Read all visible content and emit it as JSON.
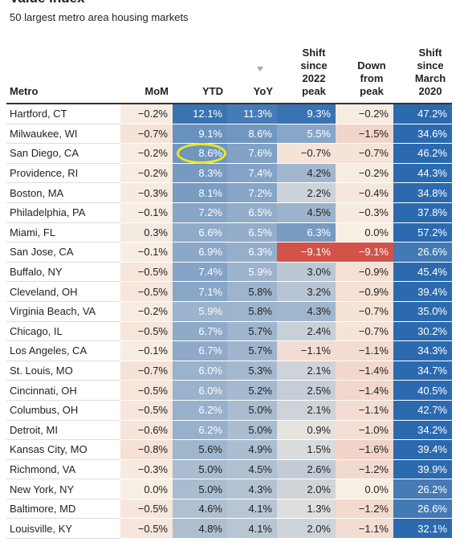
{
  "header": {
    "title": "Value index",
    "subtitle": "50 largest metro area housing markets"
  },
  "table": {
    "columns": [
      "Metro",
      "MoM",
      "YTD",
      "YoY",
      "Shift since 2022 peak",
      "Down from peak",
      "Shift since March 2020"
    ],
    "rows": [
      [
        "Hartford, CT",
        "−0.2%",
        "12.1%",
        "11.3%",
        "9.3%",
        "−0.2%",
        "47.2%"
      ],
      [
        "Milwaukee, WI",
        "−0.7%",
        "9.1%",
        "8.6%",
        "5.5%",
        "−1.5%",
        "34.6%"
      ],
      [
        "San Diego, CA",
        "−0.2%",
        "8.6%",
        "7.6%",
        "−0.7%",
        "−0.7%",
        "46.2%"
      ],
      [
        "Providence, RI",
        "−0.2%",
        "8.3%",
        "7.4%",
        "4.2%",
        "−0.2%",
        "44.3%"
      ],
      [
        "Boston, MA",
        "−0.3%",
        "8.1%",
        "7.2%",
        "2.2%",
        "−0.4%",
        "34.8%"
      ],
      [
        "Philadelphia, PA",
        "−0.1%",
        "7.2%",
        "6.5%",
        "4.5%",
        "−0.3%",
        "37.8%"
      ],
      [
        "Miami, FL",
        "0.3%",
        "6.6%",
        "6.5%",
        "6.3%",
        "0.0%",
        "57.2%"
      ],
      [
        "San Jose, CA",
        "−0.1%",
        "6.9%",
        "6.3%",
        "−9.1%",
        "−9.1%",
        "26.6%"
      ],
      [
        "Buffalo, NY",
        "−0.5%",
        "7.4%",
        "5.9%",
        "3.0%",
        "−0.9%",
        "45.4%"
      ],
      [
        "Cleveland, OH",
        "−0.5%",
        "7.1%",
        "5.8%",
        "3.2%",
        "−0.9%",
        "39.4%"
      ],
      [
        "Virginia Beach, VA",
        "−0.2%",
        "5.9%",
        "5.8%",
        "4.3%",
        "−0.7%",
        "35.0%"
      ],
      [
        "Chicago, IL",
        "−0.5%",
        "6.7%",
        "5.7%",
        "2.4%",
        "−0.7%",
        "30.2%"
      ],
      [
        "Los Angeles, CA",
        "−0.1%",
        "6.7%",
        "5.7%",
        "−1.1%",
        "−1.1%",
        "34.3%"
      ],
      [
        "St. Louis, MO",
        "−0.7%",
        "6.0%",
        "5.3%",
        "2.1%",
        "−1.4%",
        "34.7%"
      ],
      [
        "Cincinnati, OH",
        "−0.5%",
        "6.0%",
        "5.2%",
        "2.5%",
        "−1.4%",
        "40.5%"
      ],
      [
        "Columbus, OH",
        "−0.5%",
        "6.2%",
        "5.0%",
        "2.1%",
        "−1.1%",
        "42.7%"
      ],
      [
        "Detroit, MI",
        "−0.6%",
        "6.2%",
        "5.0%",
        "0.9%",
        "−1.0%",
        "34.2%"
      ],
      [
        "Kansas City, MO",
        "−0.8%",
        "5.6%",
        "4.9%",
        "1.5%",
        "−1.6%",
        "39.4%"
      ],
      [
        "Richmond, VA",
        "−0.3%",
        "5.0%",
        "4.5%",
        "2.6%",
        "−1.2%",
        "39.9%"
      ],
      [
        "New York, NY",
        "0.0%",
        "5.0%",
        "4.3%",
        "2.0%",
        "0.0%",
        "26.2%"
      ],
      [
        "Baltimore, MD",
        "−0.5%",
        "4.6%",
        "4.1%",
        "1.3%",
        "−1.2%",
        "26.6%"
      ],
      [
        "Louisville, KY",
        "−0.5%",
        "4.8%",
        "4.1%",
        "2.0%",
        "−1.1%",
        "32.1%"
      ]
    ]
  }
}
